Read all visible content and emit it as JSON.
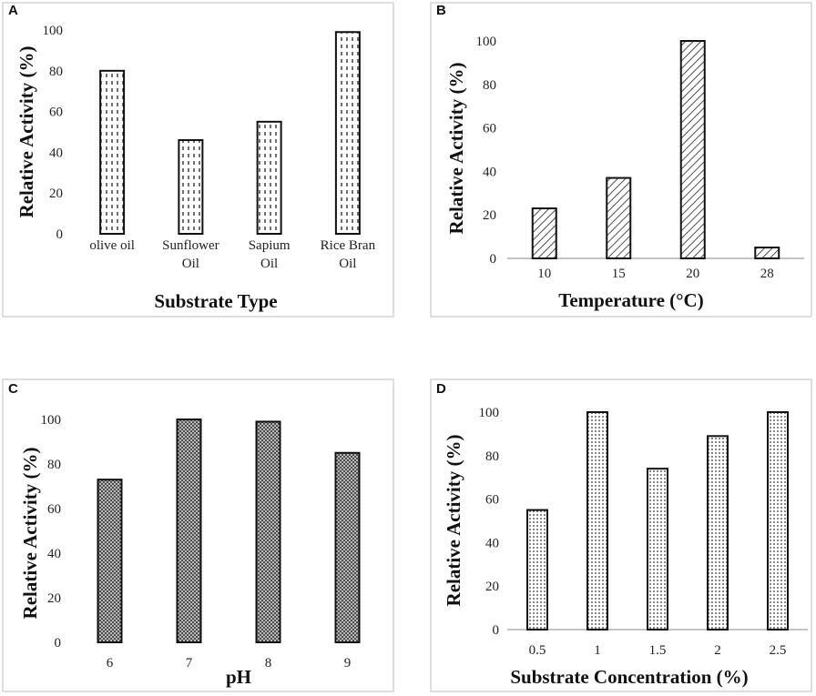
{
  "chart_data": [
    {
      "panel": "A",
      "type": "bar",
      "categories": [
        [
          "olive oil"
        ],
        [
          "Sunflower",
          "Oil"
        ],
        [
          "Sapium",
          "Oil"
        ],
        [
          "Rice Bran",
          "Oil"
        ]
      ],
      "values": [
        80,
        46,
        55,
        99
      ],
      "xlabel": "Substrate Type",
      "ylabel": "Relative Activity (%)",
      "ylim": [
        0,
        100
      ],
      "yticks": [
        0,
        20,
        40,
        60,
        80,
        100
      ],
      "pattern": "dashes"
    },
    {
      "panel": "B",
      "type": "bar",
      "categories": [
        [
          "10"
        ],
        [
          "15"
        ],
        [
          "20"
        ],
        [
          "28"
        ]
      ],
      "values": [
        23,
        37,
        100,
        5
      ],
      "xlabel": "Temperature (°C)",
      "ylabel": "Relative Activity (%)",
      "ylim": [
        0,
        100
      ],
      "yticks": [
        0,
        20,
        40,
        60,
        80,
        100
      ],
      "pattern": "diagonal"
    },
    {
      "panel": "C",
      "type": "bar",
      "categories": [
        [
          "6"
        ],
        [
          "7"
        ],
        [
          "8"
        ],
        [
          "9"
        ]
      ],
      "values": [
        73,
        100,
        99,
        85
      ],
      "xlabel": "pH",
      "ylabel": "Relative Activity (%)",
      "ylim": [
        0,
        100
      ],
      "yticks": [
        0,
        20,
        40,
        60,
        80,
        100
      ],
      "pattern": "crosshatch"
    },
    {
      "panel": "D",
      "type": "bar",
      "categories": [
        [
          "0.5"
        ],
        [
          "1"
        ],
        [
          "1.5"
        ],
        [
          "2"
        ],
        [
          "2.5"
        ]
      ],
      "values": [
        55,
        100,
        74,
        89,
        100
      ],
      "xlabel": "Substrate Concentration (%)",
      "ylabel": "Relative Activity (%)",
      "ylim": [
        0,
        100
      ],
      "yticks": [
        0,
        20,
        40,
        60,
        80,
        100
      ],
      "pattern": "dots"
    }
  ]
}
